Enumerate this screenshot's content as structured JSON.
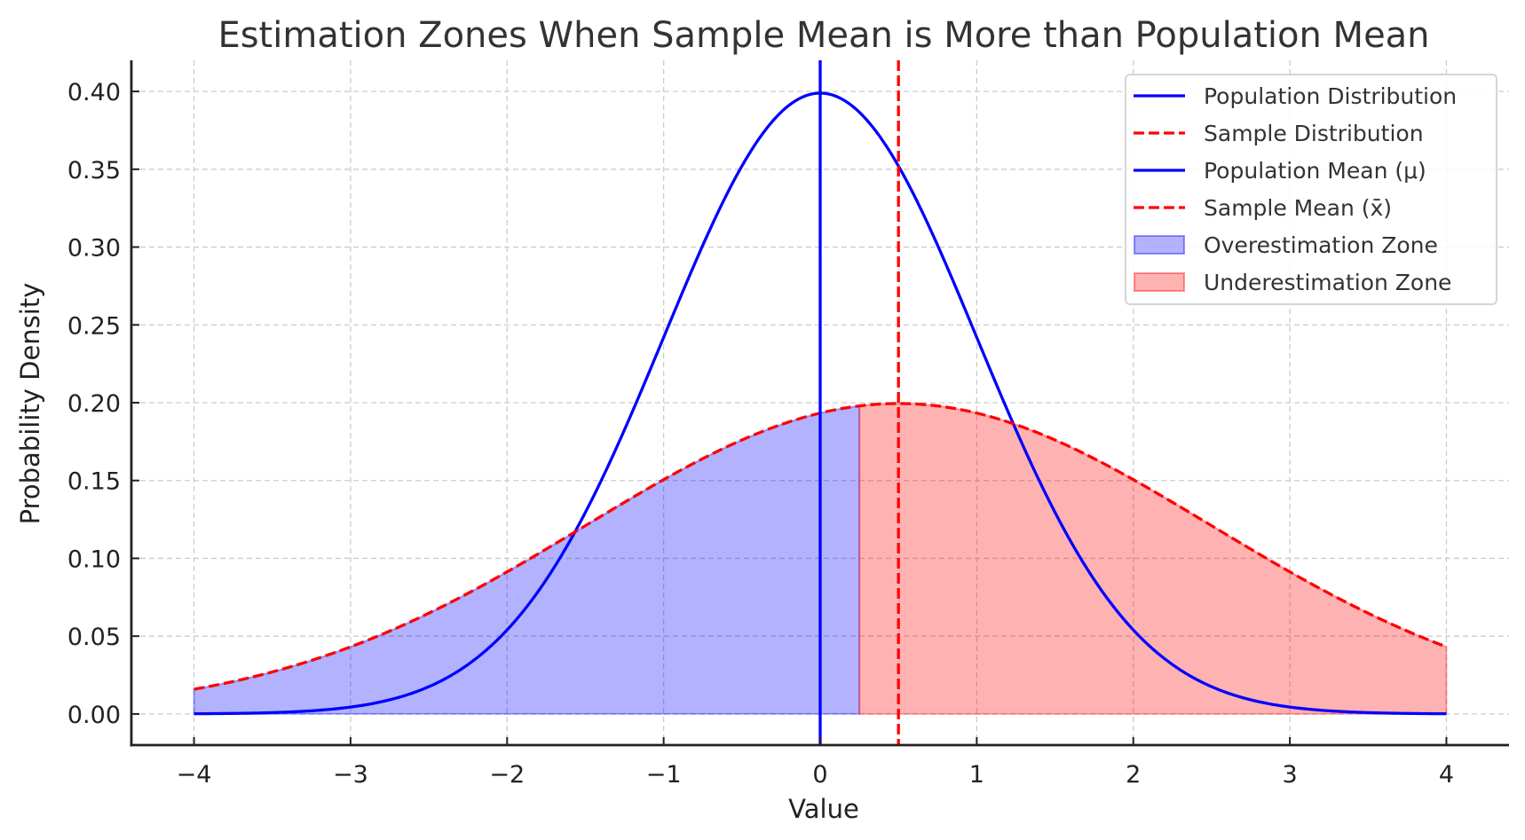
{
  "chart_data": {
    "type": "line",
    "title": "Estimation Zones When Sample Mean is More than Population Mean",
    "xlabel": "Value",
    "ylabel": "Probability Density",
    "xlim": [
      -4.4,
      4.4
    ],
    "ylim": [
      -0.02,
      0.42
    ],
    "grid": true,
    "legend_position": "top-right",
    "x_ticks": [
      -4,
      -3,
      -2,
      -1,
      0,
      1,
      2,
      3,
      4
    ],
    "x_tick_labels": [
      "−4",
      "−3",
      "−2",
      "−1",
      "0",
      "1",
      "2",
      "3",
      "4"
    ],
    "y_ticks": [
      0.0,
      0.05,
      0.1,
      0.15,
      0.2,
      0.25,
      0.3,
      0.35,
      0.4
    ],
    "y_tick_labels": [
      "0.00",
      "0.05",
      "0.10",
      "0.15",
      "0.20",
      "0.25",
      "0.30",
      "0.35",
      "0.40"
    ],
    "x_range": [
      -4,
      4
    ],
    "series": [
      {
        "name": "Population Distribution",
        "kind": "normal_pdf",
        "mean": 0,
        "std": 1,
        "color": "#0000ff",
        "style": "solid"
      },
      {
        "name": "Sample Distribution",
        "kind": "normal_pdf",
        "mean": 0.5,
        "std": 2,
        "color": "#ff0000",
        "style": "dashed"
      }
    ],
    "vlines": [
      {
        "name": "Population Mean (μ)",
        "x": 0,
        "color": "#0000ff",
        "style": "solid"
      },
      {
        "name": "Sample Mean (x̄)",
        "x": 0.5,
        "color": "#ff0000",
        "style": "dashed"
      }
    ],
    "fills": [
      {
        "name": "Overestimation Zone",
        "under": "Sample Distribution",
        "from": -4,
        "to": 0.25,
        "color": "#0000ff",
        "alpha": 0.3
      },
      {
        "name": "Underestimation Zone",
        "under": "Sample Distribution",
        "from": 0.25,
        "to": 4,
        "color": "#ff0000",
        "alpha": 0.3
      }
    ],
    "legend": [
      {
        "label": "Population Distribution",
        "marker": "line",
        "color": "#0000ff",
        "style": "solid"
      },
      {
        "label": "Sample Distribution",
        "marker": "line",
        "color": "#ff0000",
        "style": "dashed"
      },
      {
        "label": "Population Mean (μ)",
        "marker": "line",
        "color": "#0000ff",
        "style": "solid"
      },
      {
        "label": "Sample Mean (x̄)",
        "marker": "line",
        "color": "#ff0000",
        "style": "dashed"
      },
      {
        "label": "Overestimation Zone",
        "marker": "patch",
        "color": "#0000ff",
        "alpha": 0.3
      },
      {
        "label": "Underestimation Zone",
        "marker": "patch",
        "color": "#ff0000",
        "alpha": 0.3
      }
    ]
  }
}
